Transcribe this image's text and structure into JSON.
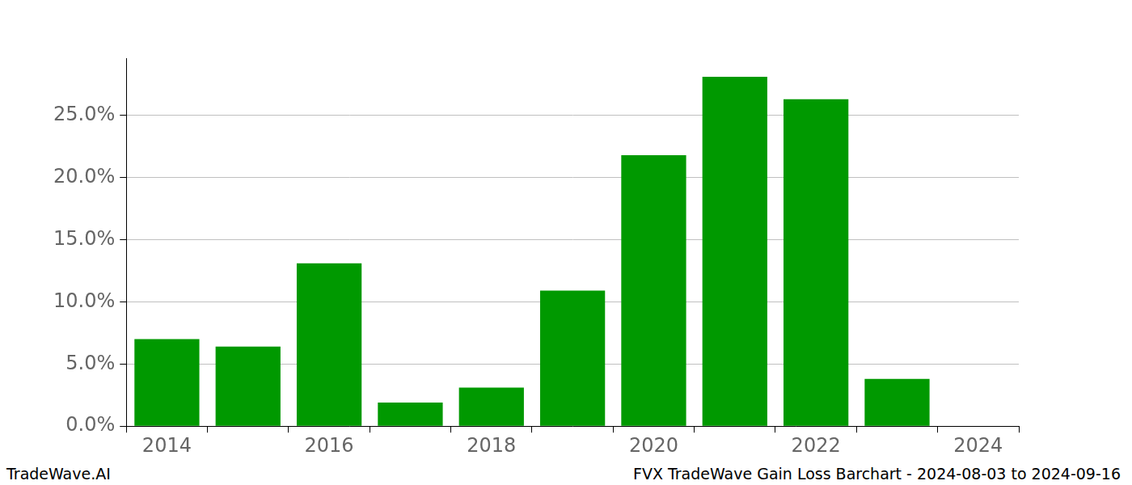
{
  "chart_data": {
    "type": "bar",
    "title": "FVX TradeWave Gain Loss Barchart - 2024-08-03 to 2024-09-16",
    "annotations": [
      "TradeWave.AI"
    ],
    "categories": [
      "2014",
      null,
      "2016",
      null,
      "2018",
      null,
      "2020",
      null,
      "2022",
      null,
      "2024"
    ],
    "values": [
      7.0,
      6.4,
      13.1,
      1.9,
      3.1,
      10.9,
      21.8,
      28.1,
      26.3,
      3.8,
      null
    ],
    "color": "#009900",
    "ylim": [
      0,
      29.6
    ],
    "yticks": [
      {
        "value": 0,
        "label": "0.0%"
      },
      {
        "value": 5,
        "label": "5.0%"
      },
      {
        "value": 10,
        "label": "10.0%"
      },
      {
        "value": 15,
        "label": "15.0%"
      },
      {
        "value": 20,
        "label": "20.0%"
      },
      {
        "value": 25,
        "label": "25.0%"
      }
    ],
    "grid": true
  }
}
